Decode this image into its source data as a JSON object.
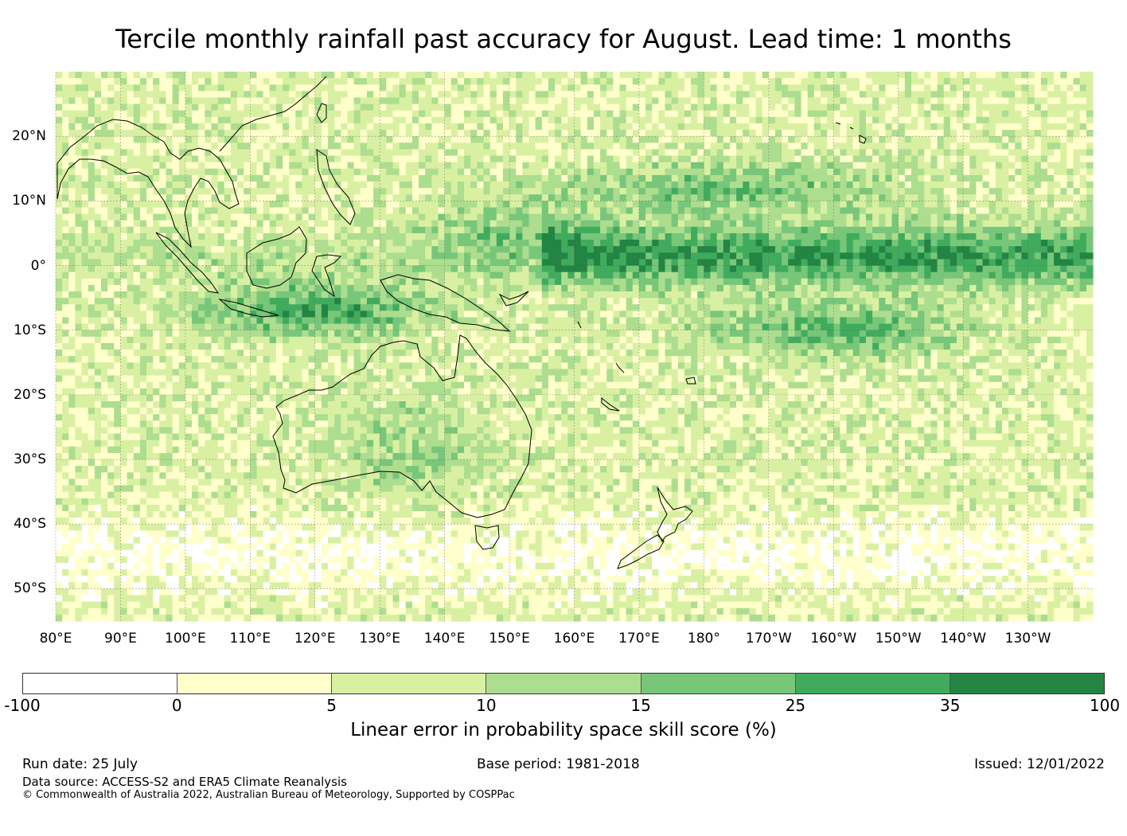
{
  "title": "Tercile monthly rainfall past accuracy for August. Lead time: 1 months",
  "map": {
    "lon_labels": [
      "80°E",
      "90°E",
      "100°E",
      "110°E",
      "120°E",
      "130°E",
      "140°E",
      "150°E",
      "160°E",
      "170°E",
      "180°",
      "170°W",
      "160°W",
      "150°W",
      "140°W",
      "130°W"
    ],
    "lat_labels": [
      "20°N",
      "10°N",
      "0°",
      "10°S",
      "20°S",
      "30°S",
      "40°S",
      "50°S"
    ],
    "lon_values": [
      80,
      90,
      100,
      110,
      120,
      130,
      140,
      150,
      160,
      170,
      180,
      190,
      200,
      210,
      220,
      230
    ],
    "lat_values": [
      20,
      10,
      0,
      -10,
      -20,
      -30,
      -40,
      -50
    ],
    "lon_range": [
      80,
      240
    ],
    "lat_range": [
      -55,
      30
    ]
  },
  "colorbar": {
    "ticks": [
      "-100",
      "0",
      "5",
      "10",
      "15",
      "25",
      "35",
      "100"
    ],
    "colors": [
      "#ffffff",
      "#ffffcc",
      "#d9f0a3",
      "#addd8e",
      "#78c679",
      "#41ab5d",
      "#238443"
    ],
    "label": "Linear error in probability space skill score (%)"
  },
  "footer": {
    "run_date": "Run date: 25 July",
    "base_period": "Base period: 1981-2018",
    "issued": "Issued: 12/01/2022",
    "data_source": "Data source: ACCESS-S2 and ERA5 Climate Reanalysis",
    "copyright": "© Commonwealth of Australia 2022, Australian Bureau of Meteorology, Supported by COSPPac"
  }
}
